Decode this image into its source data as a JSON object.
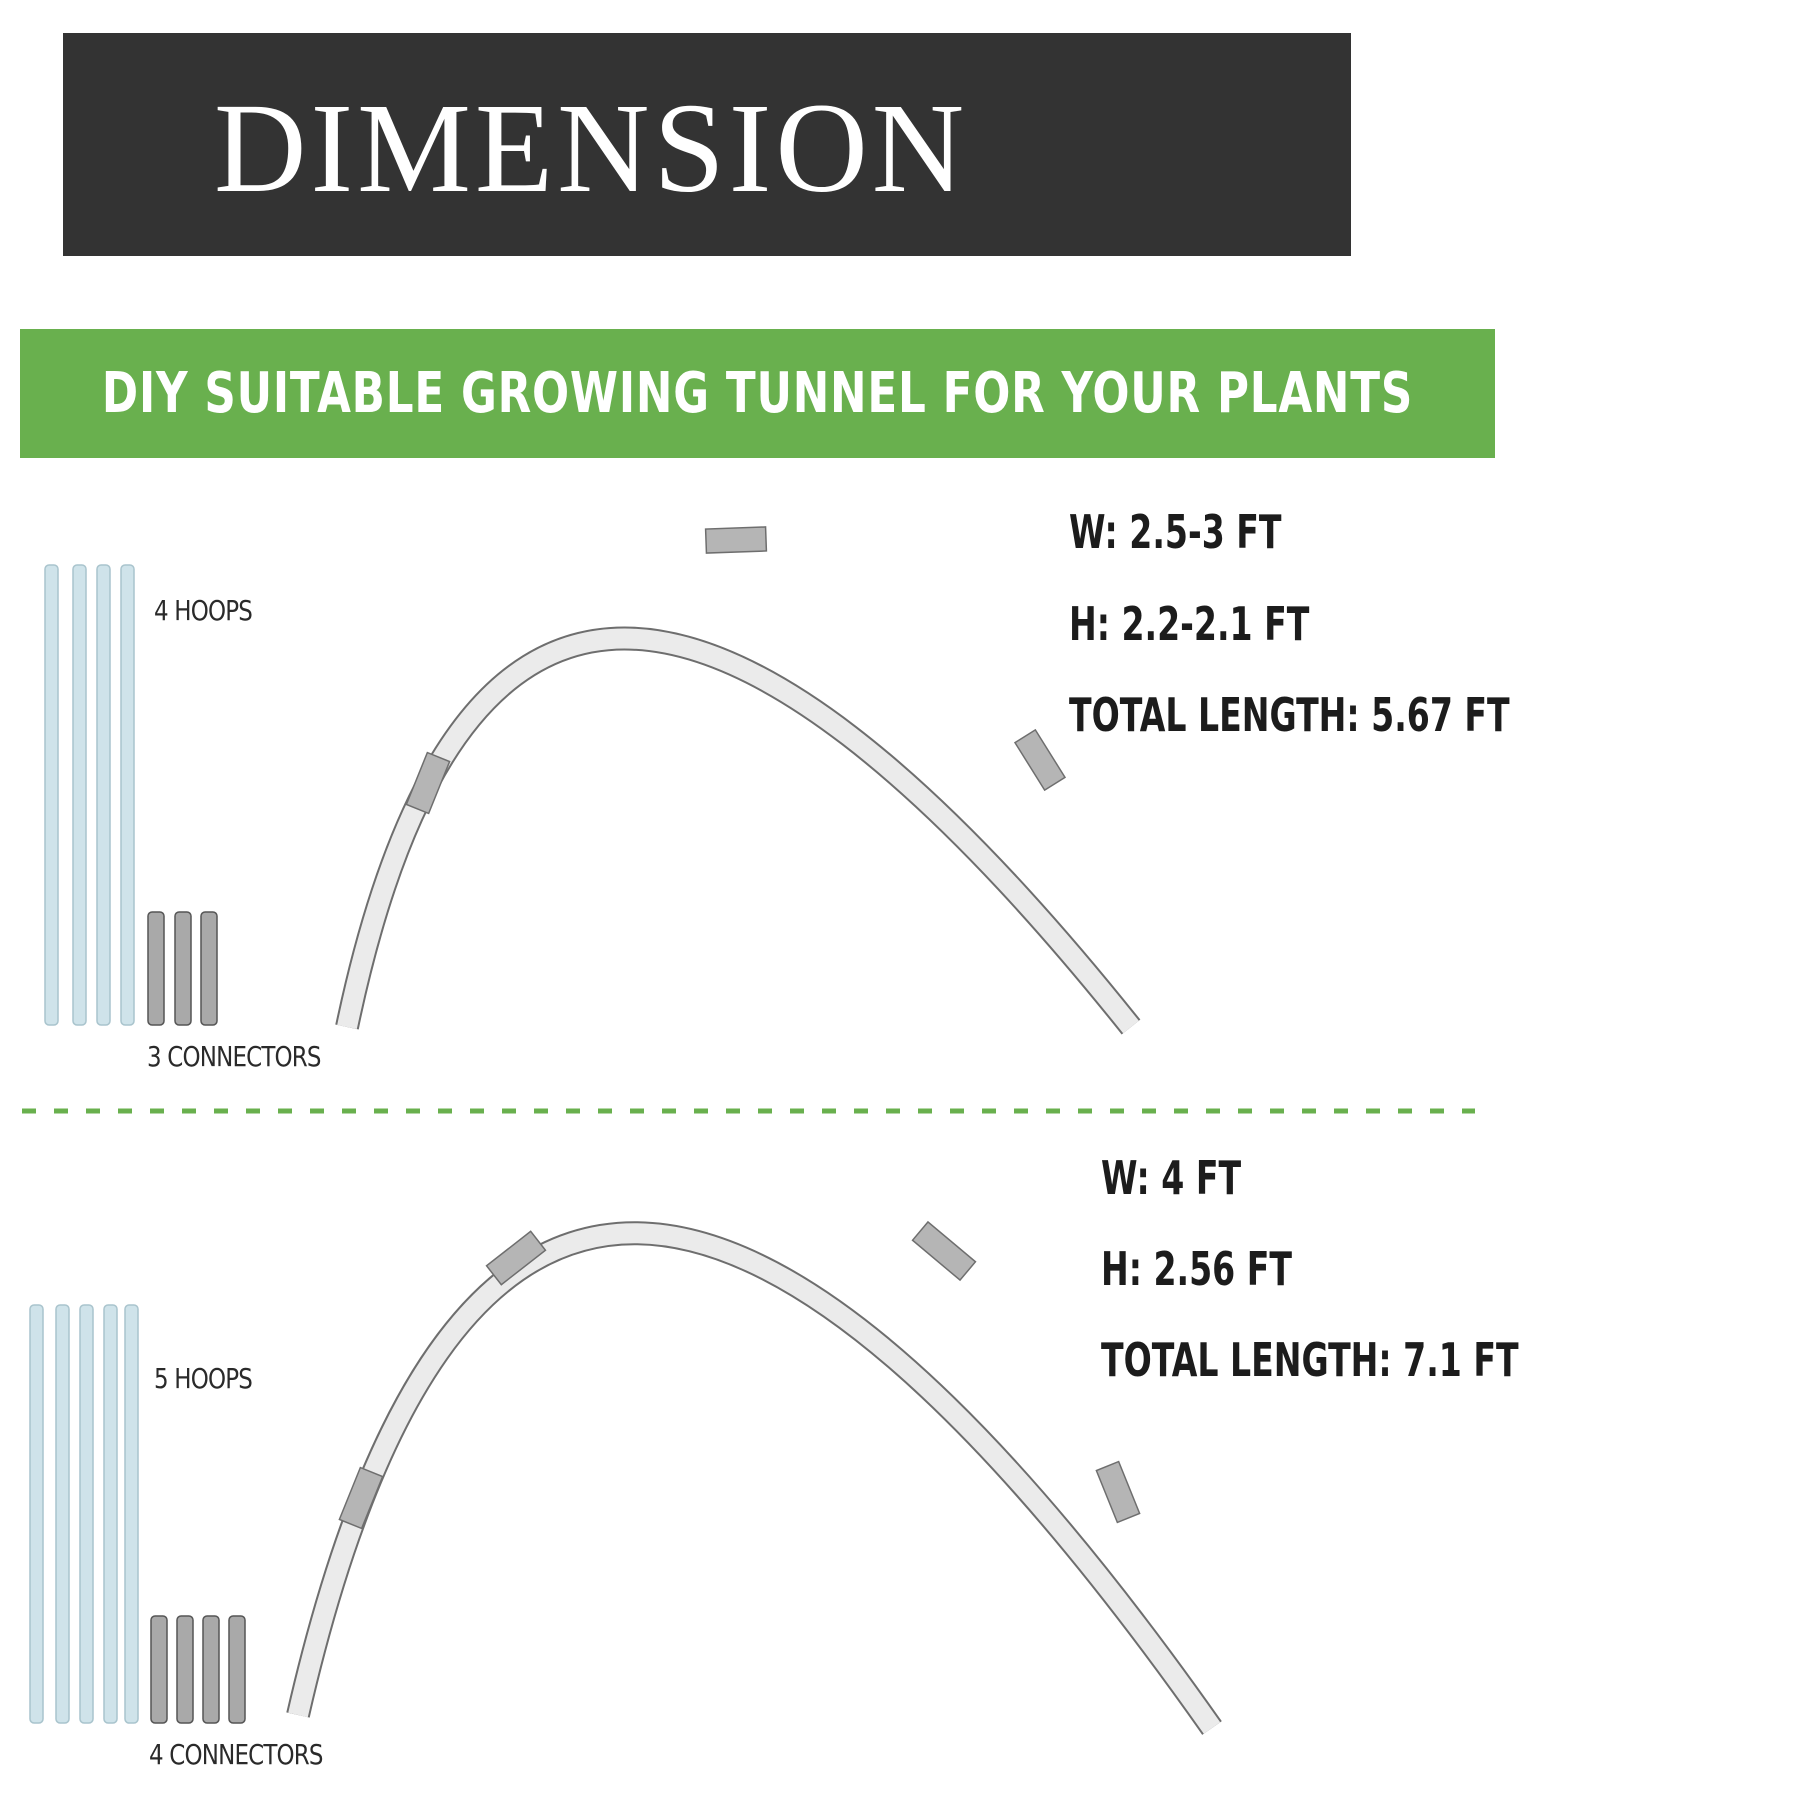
{
  "header": {
    "title": "DIMENSION"
  },
  "banner": {
    "text": "DIY SUITABLE GROWING TUNNEL FOR YOUR PLANTS"
  },
  "colors": {
    "banner_dark": "#333333",
    "banner_green": "#69b04e",
    "hoop_blue": "#cfe3ea",
    "connector_gray": "#a9a9a9"
  },
  "sets": [
    {
      "hoops_label": "4 HOOPS",
      "hoops_count": 4,
      "connectors_label": "3 CONNECTORS",
      "connectors_count": 3,
      "width": "W: 2.5-3 FT",
      "height": "H: 2.2-2.1 FT",
      "total_length": "TOTAL LENGTH: 5.67 FT"
    },
    {
      "hoops_label": "5 HOOPS",
      "hoops_count": 5,
      "connectors_label": "4 CONNECTORS",
      "connectors_count": 4,
      "width": "W: 4 FT",
      "height": "H: 2.56 FT",
      "total_length": "TOTAL LENGTH: 7.1 FT"
    }
  ]
}
